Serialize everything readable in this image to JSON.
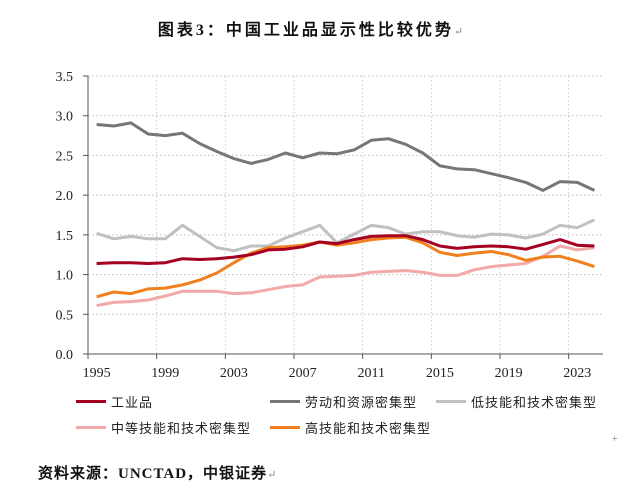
{
  "title": "图表3：中国工业品显示性比较优势",
  "title_mark": "↵",
  "source": "资料来源：UNCTAD，中银证券",
  "source_mark": "↵",
  "edge_mark": "+",
  "chart_data": {
    "type": "line",
    "title": "图表3：中国工业品显示性比较优势",
    "xlabel": "",
    "ylabel": "",
    "ylim": [
      0,
      3.5
    ],
    "yticks": [
      "0.0",
      "0.5",
      "1.0",
      "1.5",
      "2.0",
      "2.5",
      "3.0",
      "3.5"
    ],
    "xtick_labels": [
      "1995",
      "1999",
      "2003",
      "2007",
      "2011",
      "2015",
      "2019",
      "2023"
    ],
    "grid": true,
    "legend_position": "bottom",
    "x": [
      1995,
      1996,
      1997,
      1998,
      1999,
      2000,
      2001,
      2002,
      2003,
      2004,
      2005,
      2006,
      2007,
      2008,
      2009,
      2010,
      2011,
      2012,
      2013,
      2014,
      2015,
      2016,
      2017,
      2018,
      2019,
      2020,
      2021,
      2022,
      2023,
      2024
    ],
    "series": [
      {
        "name": "工业品",
        "color": "#a50021",
        "values": [
          1.14,
          1.15,
          1.15,
          1.14,
          1.15,
          1.2,
          1.19,
          1.2,
          1.22,
          1.25,
          1.31,
          1.32,
          1.35,
          1.41,
          1.39,
          1.44,
          1.48,
          1.49,
          1.49,
          1.44,
          1.36,
          1.33,
          1.35,
          1.36,
          1.35,
          1.32,
          1.38,
          1.44,
          1.37,
          1.36
        ]
      },
      {
        "name": "劳动和资源密集型",
        "color": "#767676",
        "values": [
          2.89,
          2.87,
          2.91,
          2.77,
          2.75,
          2.78,
          2.65,
          2.55,
          2.46,
          2.4,
          2.45,
          2.53,
          2.47,
          2.53,
          2.52,
          2.57,
          2.69,
          2.71,
          2.64,
          2.53,
          2.37,
          2.33,
          2.32,
          2.27,
          2.22,
          2.16,
          2.06,
          2.17,
          2.16,
          2.06
        ]
      },
      {
        "name": "低技能和技术密集型",
        "color": "#c0c0c0",
        "values": [
          1.52,
          1.45,
          1.48,
          1.45,
          1.45,
          1.62,
          1.48,
          1.34,
          1.3,
          1.36,
          1.36,
          1.46,
          1.54,
          1.62,
          1.4,
          1.51,
          1.62,
          1.59,
          1.51,
          1.54,
          1.54,
          1.49,
          1.47,
          1.51,
          1.5,
          1.46,
          1.51,
          1.62,
          1.59,
          1.69
        ]
      },
      {
        "name": "中等技能和技术密集型",
        "color": "#f2a9a9",
        "values": [
          0.61,
          0.65,
          0.66,
          0.68,
          0.73,
          0.79,
          0.79,
          0.79,
          0.76,
          0.77,
          0.81,
          0.85,
          0.87,
          0.97,
          0.98,
          0.99,
          1.03,
          1.04,
          1.05,
          1.03,
          0.99,
          0.99,
          1.06,
          1.1,
          1.12,
          1.14,
          1.23,
          1.36,
          1.31,
          1.34
        ]
      },
      {
        "name": "高技能和技术密集型",
        "color": "#f07f1e",
        "values": [
          0.72,
          0.78,
          0.76,
          0.82,
          0.83,
          0.87,
          0.93,
          1.02,
          1.15,
          1.27,
          1.34,
          1.35,
          1.37,
          1.41,
          1.37,
          1.4,
          1.44,
          1.46,
          1.47,
          1.4,
          1.28,
          1.24,
          1.27,
          1.29,
          1.25,
          1.18,
          1.22,
          1.23,
          1.17,
          1.1
        ]
      }
    ]
  }
}
